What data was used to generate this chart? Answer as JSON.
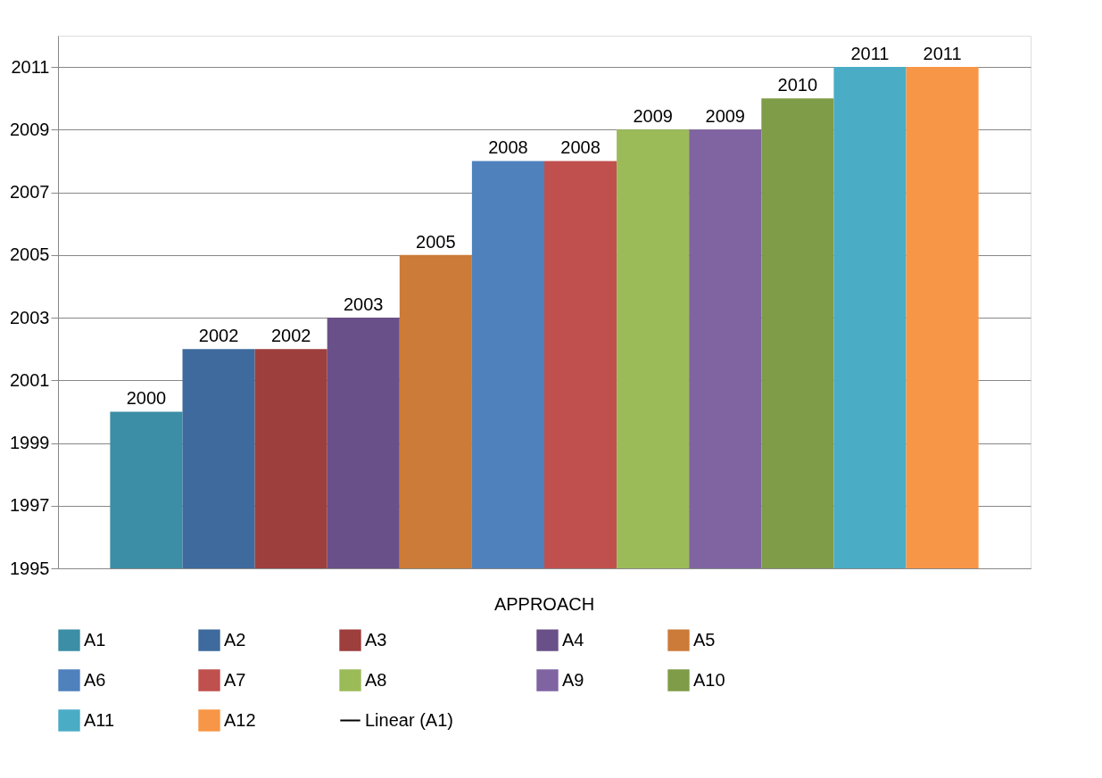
{
  "chart_data": {
    "type": "bar",
    "xlabel": null,
    "categories": [
      "APPROACH"
    ],
    "series": [
      {
        "name": "A1",
        "color": "#3b8ea5",
        "values": [
          2000
        ]
      },
      {
        "name": "A2",
        "color": "#3e6a9d",
        "values": [
          2002
        ]
      },
      {
        "name": "A3",
        "color": "#9d3f3d",
        "values": [
          2002
        ]
      },
      {
        "name": "A4",
        "color": "#6a5088",
        "values": [
          2003
        ]
      },
      {
        "name": "A5",
        "color": "#cc7b38",
        "values": [
          2005
        ]
      },
      {
        "name": "A6",
        "color": "#4f81bd",
        "values": [
          2008
        ]
      },
      {
        "name": "A7",
        "color": "#c0504d",
        "values": [
          2008
        ]
      },
      {
        "name": "A8",
        "color": "#9bbb59",
        "values": [
          2009
        ]
      },
      {
        "name": "A9",
        "color": "#8064a2",
        "values": [
          2009
        ]
      },
      {
        "name": "A10",
        "color": "#7f9c48",
        "values": [
          2010
        ]
      },
      {
        "name": "A11",
        "color": "#4bacc6",
        "values": [
          2011
        ]
      },
      {
        "name": "A12",
        "color": "#f79646",
        "values": [
          2011
        ]
      },
      {
        "name": "Linear (A1)",
        "type": "line",
        "color": "#000000",
        "values": [
          null
        ]
      }
    ],
    "ylim": [
      1995,
      2012
    ],
    "yticks": [
      1995,
      1997,
      1999,
      2001,
      2003,
      2005,
      2007,
      2009,
      2011
    ],
    "grid": "y",
    "legend": "bottom",
    "data_labels": true
  }
}
